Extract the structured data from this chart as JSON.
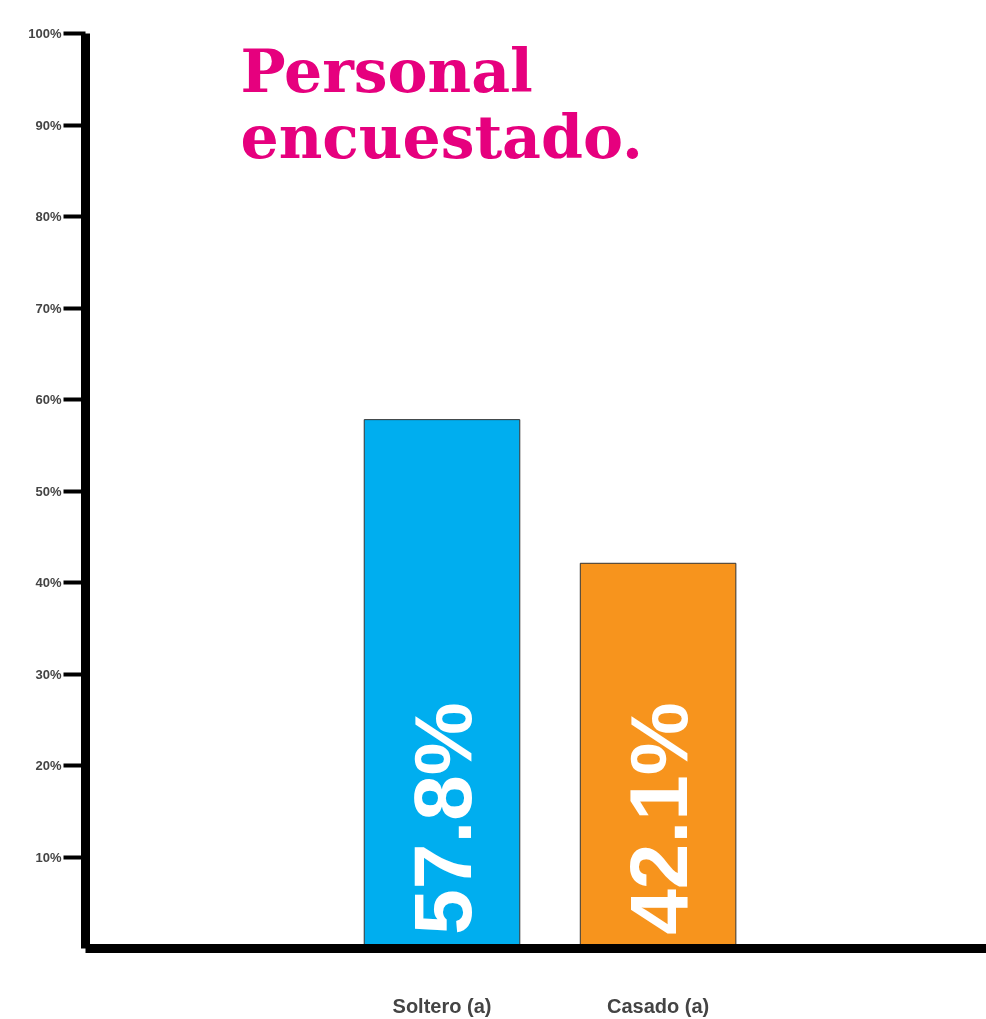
{
  "chart_data": {
    "type": "bar",
    "title": "Personal encuestado.",
    "categories": [
      "Soltero (a)",
      "Casado (a)"
    ],
    "values": [
      57.8,
      42.1
    ],
    "value_labels": [
      "57.8%",
      "42.1%"
    ],
    "colors": [
      "#00aeef",
      "#f7941d"
    ],
    "ylim": [
      0,
      100
    ],
    "yticks": [
      {
        "value": 10,
        "label": "10%"
      },
      {
        "value": 20,
        "label": "20%"
      },
      {
        "value": 30,
        "label": "30%"
      },
      {
        "value": 40,
        "label": "40%"
      },
      {
        "value": 50,
        "label": "50%"
      },
      {
        "value": 60,
        "label": "60%"
      },
      {
        "value": 70,
        "label": "70%"
      },
      {
        "value": 80,
        "label": "80%"
      },
      {
        "value": 90,
        "label": "90%"
      },
      {
        "value": 100,
        "label": "100%"
      }
    ],
    "grid": false
  }
}
